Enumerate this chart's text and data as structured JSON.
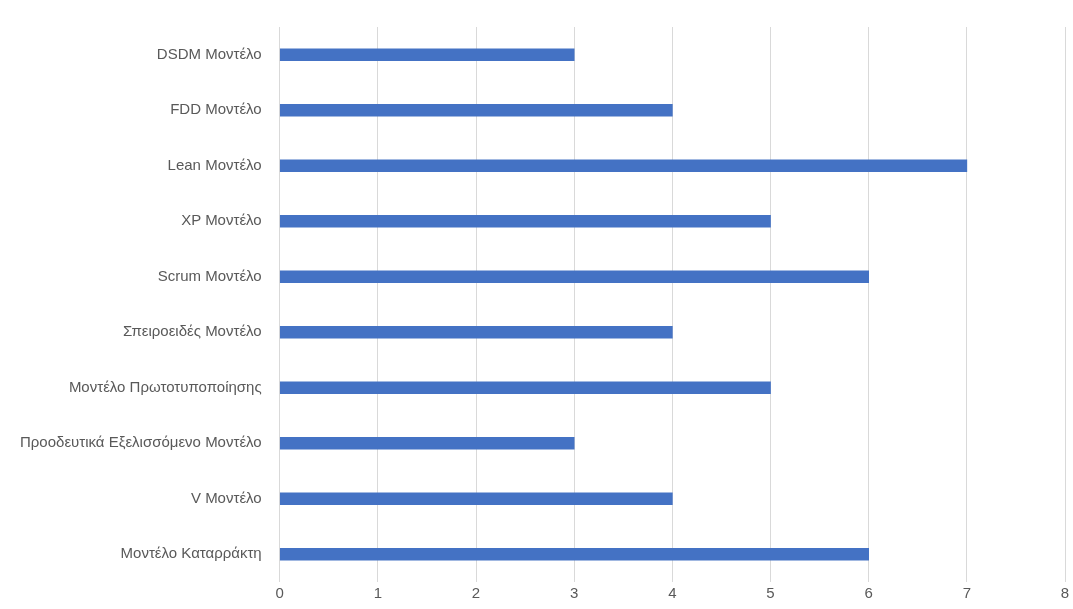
{
  "chart_data": {
    "type": "bar",
    "orientation": "horizontal",
    "categories": [
      "DSDM Μοντέλο",
      "FDD Μοντέλο",
      "Lean Μοντέλο",
      "XP Μοντέλο",
      "Scrum Μοντέλο",
      "Σπειροειδές Μοντέλο",
      "Μοντέλο Πρωτοτυποποίησης",
      "Προοδευτικά Εξελισσόμενο Μοντέλο",
      "V Μοντέλο",
      "Μοντέλο Καταρράκτη"
    ],
    "values": [
      3,
      4,
      7,
      5,
      6,
      4,
      5,
      3,
      4,
      6
    ],
    "color": "#4472c4",
    "xlim": [
      0,
      8
    ],
    "xticks": [
      0,
      1,
      2,
      3,
      4,
      5,
      6,
      7,
      8
    ],
    "grid": "x",
    "legend": false
  }
}
